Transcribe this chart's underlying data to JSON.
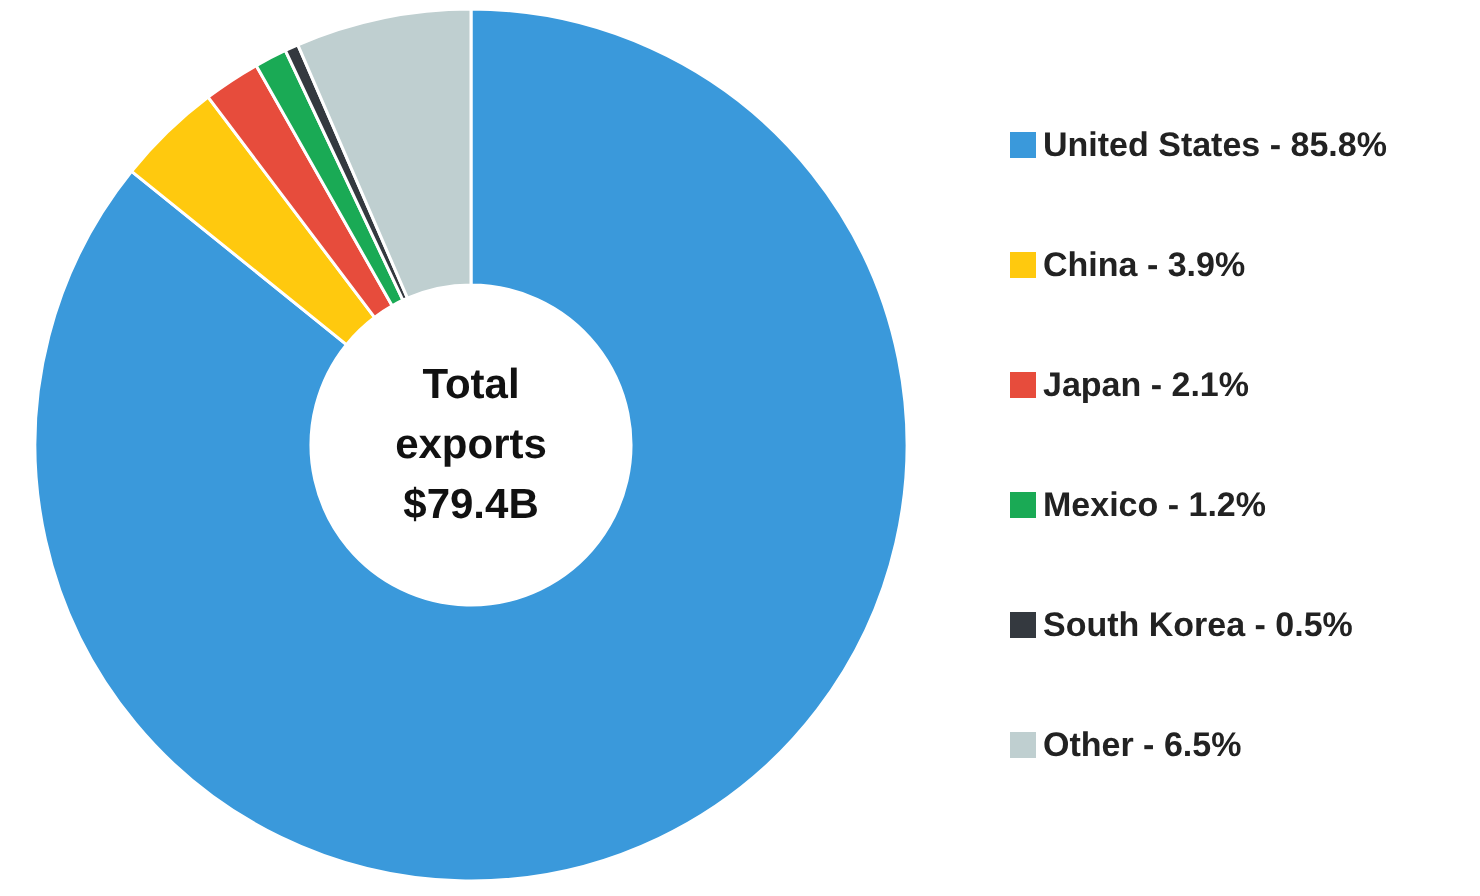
{
  "chart_data": {
    "type": "donut",
    "categories": [
      "United States - 85.8%",
      "China - 3.9%",
      "Japan - 2.1%",
      "Mexico - 1.2%",
      "South Korea - 0.5%",
      "Other - 6.5%"
    ],
    "values": [
      85.8,
      3.9,
      2.1,
      1.2,
      0.5,
      6.5
    ],
    "colors": [
      "#3a99db",
      "#ffc90e",
      "#e74c3c",
      "#1aaa55",
      "#34393f",
      "#bfcfd0"
    ],
    "annotations": [
      "Total\nexports\n$79.4B"
    ],
    "legend": "right"
  }
}
